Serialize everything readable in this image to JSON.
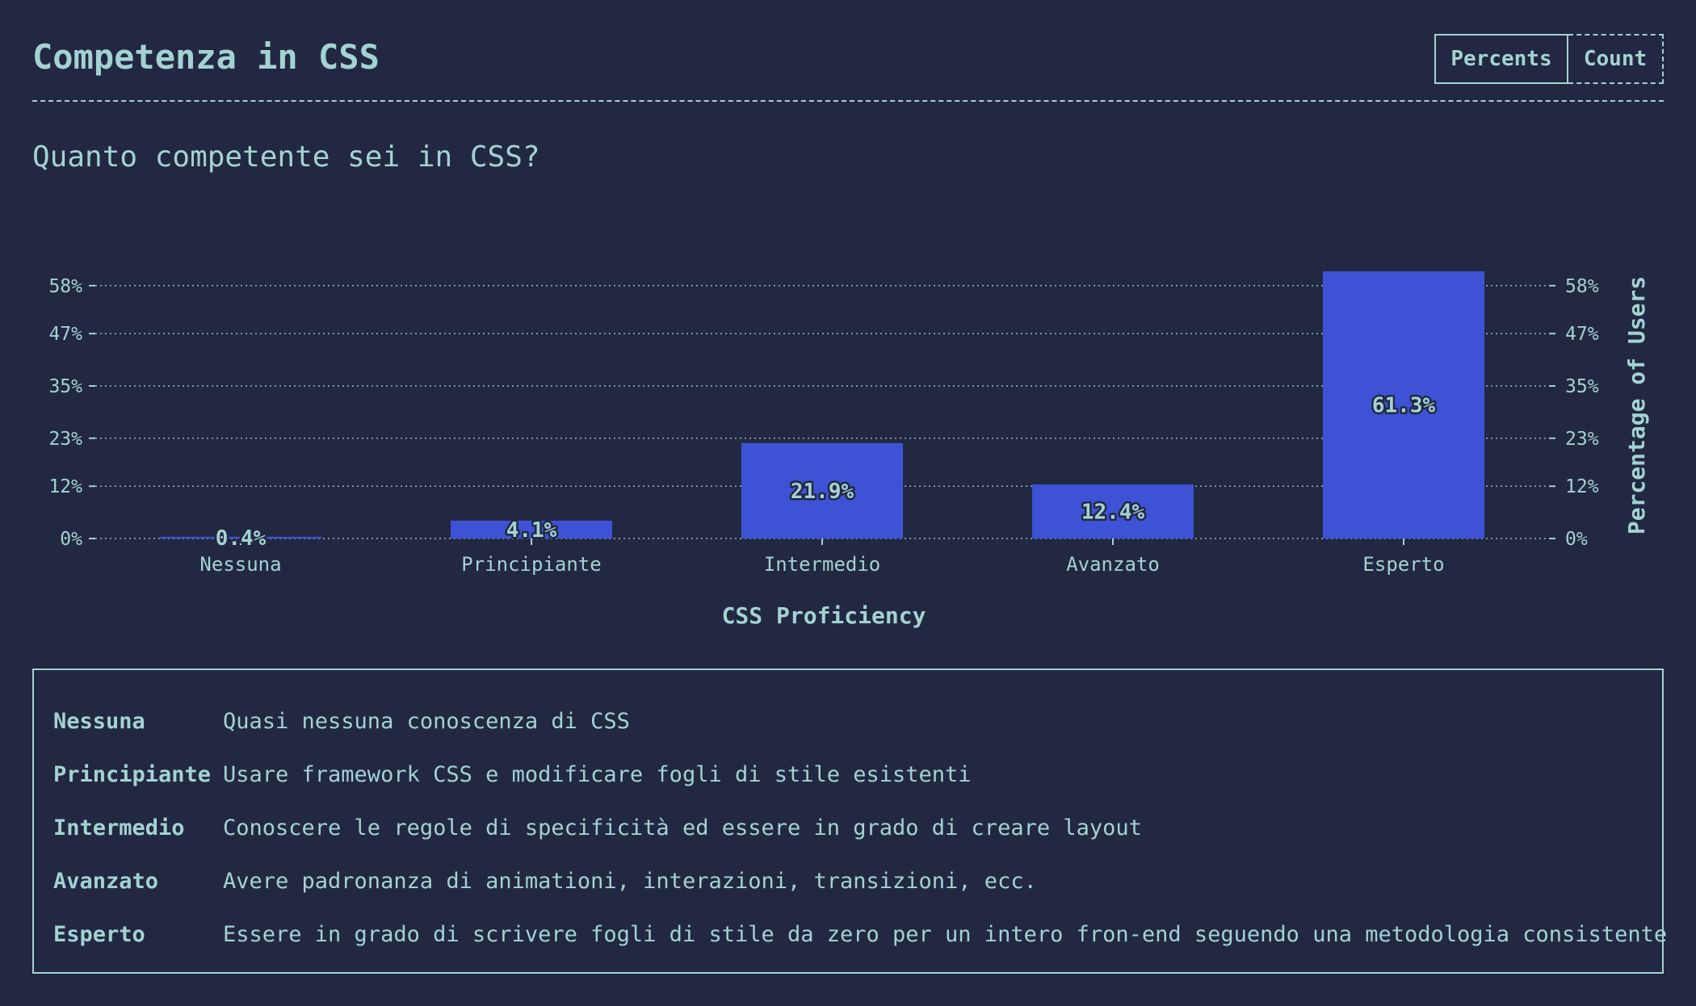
{
  "header": {
    "title": "Competenza in CSS",
    "toggle_percents": "Percents",
    "toggle_count": "Count"
  },
  "question": "Quanto competente sei in CSS?",
  "colors": {
    "background": "#222842",
    "text": "#a3d2d2",
    "bar": "#3d52d4"
  },
  "chart_data": {
    "type": "bar",
    "categories": [
      "Nessuna",
      "Principiante",
      "Intermedio",
      "Avanzato",
      "Esperto"
    ],
    "values": [
      0.4,
      4.1,
      21.9,
      12.4,
      61.3
    ],
    "value_labels": [
      "0.4%",
      "4.1%",
      "21.9%",
      "12.4%",
      "61.3%"
    ],
    "xlabel": "CSS Proficiency",
    "ylabel": "Percentage of Users",
    "yticks": [
      0,
      12,
      23,
      35,
      47,
      58
    ],
    "ytick_labels": [
      "0%",
      "12%",
      "23%",
      "35%",
      "47%",
      "58%"
    ],
    "ylim": [
      0,
      58
    ],
    "grid": true
  },
  "legend": [
    {
      "term": "Nessuna",
      "description": "Quasi nessuna conoscenza di CSS"
    },
    {
      "term": "Principiante",
      "description": "Usare framework CSS e modificare fogli di stile esistenti"
    },
    {
      "term": "Intermedio",
      "description": "Conoscere le regole di specificità ed essere in grado di creare layout"
    },
    {
      "term": "Avanzato",
      "description": "Avere padronanza di animationi, interazioni, transizioni, ecc."
    },
    {
      "term": "Esperto",
      "description": "Essere in grado di scrivere fogli di stile da zero per un intero fron-end seguendo una metodologia consistente"
    }
  ]
}
